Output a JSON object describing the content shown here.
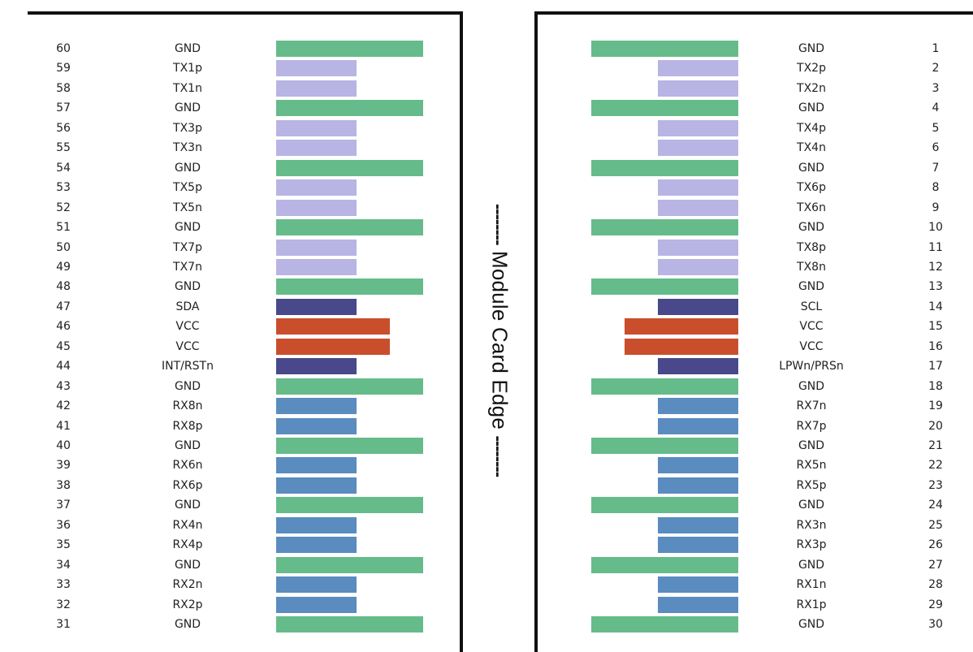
{
  "center_label": {
    "dashes_left": "--------",
    "text": "Module Card Edge",
    "dashes_right": "--------"
  },
  "colors": {
    "GND": "#66bb8a",
    "TX": "#b8b4e4",
    "SIDEBAND": "#48488a",
    "VCC": "#c94f2c",
    "RX": "#5a8cc0"
  },
  "left_side": [
    {
      "num": "60",
      "label": "GND",
      "kind": "GND",
      "len": "long"
    },
    {
      "num": "59",
      "label": "TX1p",
      "kind": "TX",
      "len": "short"
    },
    {
      "num": "58",
      "label": "TX1n",
      "kind": "TX",
      "len": "short"
    },
    {
      "num": "57",
      "label": "GND",
      "kind": "GND",
      "len": "long"
    },
    {
      "num": "56",
      "label": "TX3p",
      "kind": "TX",
      "len": "short"
    },
    {
      "num": "55",
      "label": "TX3n",
      "kind": "TX",
      "len": "short"
    },
    {
      "num": "54",
      "label": "GND",
      "kind": "GND",
      "len": "long"
    },
    {
      "num": "53",
      "label": "TX5p",
      "kind": "TX",
      "len": "short"
    },
    {
      "num": "52",
      "label": "TX5n",
      "kind": "TX",
      "len": "short"
    },
    {
      "num": "51",
      "label": "GND",
      "kind": "GND",
      "len": "long"
    },
    {
      "num": "50",
      "label": "TX7p",
      "kind": "TX",
      "len": "short"
    },
    {
      "num": "49",
      "label": "TX7n",
      "kind": "TX",
      "len": "short"
    },
    {
      "num": "48",
      "label": "GND",
      "kind": "GND",
      "len": "long"
    },
    {
      "num": "47",
      "label": "SDA",
      "kind": "SIDEBAND",
      "len": "short"
    },
    {
      "num": "46",
      "label": "VCC",
      "kind": "VCC",
      "len": "medium"
    },
    {
      "num": "45",
      "label": "VCC",
      "kind": "VCC",
      "len": "medium"
    },
    {
      "num": "44",
      "label": "INT/RSTn",
      "kind": "SIDEBAND",
      "len": "short"
    },
    {
      "num": "43",
      "label": "GND",
      "kind": "GND",
      "len": "long"
    },
    {
      "num": "42",
      "label": "RX8n",
      "kind": "RX",
      "len": "short"
    },
    {
      "num": "41",
      "label": "RX8p",
      "kind": "RX",
      "len": "short"
    },
    {
      "num": "40",
      "label": "GND",
      "kind": "GND",
      "len": "long"
    },
    {
      "num": "39",
      "label": "RX6n",
      "kind": "RX",
      "len": "short"
    },
    {
      "num": "38",
      "label": "RX6p",
      "kind": "RX",
      "len": "short"
    },
    {
      "num": "37",
      "label": "GND",
      "kind": "GND",
      "len": "long"
    },
    {
      "num": "36",
      "label": "RX4n",
      "kind": "RX",
      "len": "short"
    },
    {
      "num": "35",
      "label": "RX4p",
      "kind": "RX",
      "len": "short"
    },
    {
      "num": "34",
      "label": "GND",
      "kind": "GND",
      "len": "long"
    },
    {
      "num": "33",
      "label": "RX2n",
      "kind": "RX",
      "len": "short"
    },
    {
      "num": "32",
      "label": "RX2p",
      "kind": "RX",
      "len": "short"
    },
    {
      "num": "31",
      "label": "GND",
      "kind": "GND",
      "len": "long"
    }
  ],
  "right_side": [
    {
      "num": "1",
      "label": "GND",
      "kind": "GND",
      "len": "long"
    },
    {
      "num": "2",
      "label": "TX2p",
      "kind": "TX",
      "len": "short"
    },
    {
      "num": "3",
      "label": "TX2n",
      "kind": "TX",
      "len": "short"
    },
    {
      "num": "4",
      "label": "GND",
      "kind": "GND",
      "len": "long"
    },
    {
      "num": "5",
      "label": "TX4p",
      "kind": "TX",
      "len": "short"
    },
    {
      "num": "6",
      "label": "TX4n",
      "kind": "TX",
      "len": "short"
    },
    {
      "num": "7",
      "label": "GND",
      "kind": "GND",
      "len": "long"
    },
    {
      "num": "8",
      "label": "TX6p",
      "kind": "TX",
      "len": "short"
    },
    {
      "num": "9",
      "label": "TX6n",
      "kind": "TX",
      "len": "short"
    },
    {
      "num": "10",
      "label": "GND",
      "kind": "GND",
      "len": "long"
    },
    {
      "num": "11",
      "label": "TX8p",
      "kind": "TX",
      "len": "short"
    },
    {
      "num": "12",
      "label": "TX8n",
      "kind": "TX",
      "len": "short"
    },
    {
      "num": "13",
      "label": "GND",
      "kind": "GND",
      "len": "long"
    },
    {
      "num": "14",
      "label": "SCL",
      "kind": "SIDEBAND",
      "len": "short"
    },
    {
      "num": "15",
      "label": "VCC",
      "kind": "VCC",
      "len": "medium"
    },
    {
      "num": "16",
      "label": "VCC",
      "kind": "VCC",
      "len": "medium"
    },
    {
      "num": "17",
      "label": "LPWn/PRSn",
      "kind": "SIDEBAND",
      "len": "short"
    },
    {
      "num": "18",
      "label": "GND",
      "kind": "GND",
      "len": "long"
    },
    {
      "num": "19",
      "label": "RX7n",
      "kind": "RX",
      "len": "short"
    },
    {
      "num": "20",
      "label": "RX7p",
      "kind": "RX",
      "len": "short"
    },
    {
      "num": "21",
      "label": "GND",
      "kind": "GND",
      "len": "long"
    },
    {
      "num": "22",
      "label": "RX5n",
      "kind": "RX",
      "len": "short"
    },
    {
      "num": "23",
      "label": "RX5p",
      "kind": "RX",
      "len": "short"
    },
    {
      "num": "24",
      "label": "GND",
      "kind": "GND",
      "len": "long"
    },
    {
      "num": "25",
      "label": "RX3n",
      "kind": "RX",
      "len": "short"
    },
    {
      "num": "26",
      "label": "RX3p",
      "kind": "RX",
      "len": "short"
    },
    {
      "num": "27",
      "label": "GND",
      "kind": "GND",
      "len": "long"
    },
    {
      "num": "28",
      "label": "RX1n",
      "kind": "RX",
      "len": "short"
    },
    {
      "num": "29",
      "label": "RX1p",
      "kind": "RX",
      "len": "short"
    },
    {
      "num": "30",
      "label": "GND",
      "kind": "GND",
      "len": "long"
    }
  ]
}
